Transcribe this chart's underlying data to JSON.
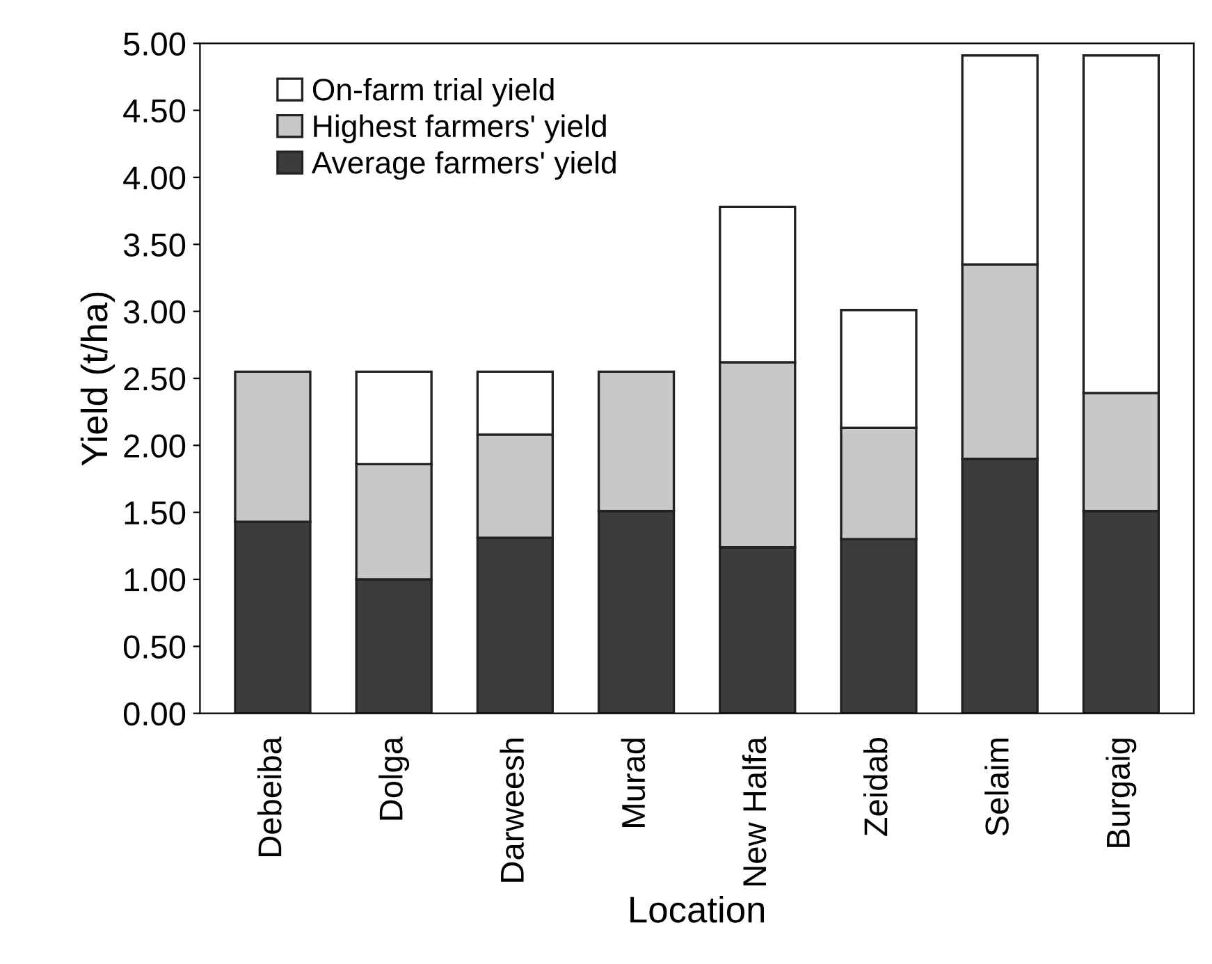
{
  "chart_data": {
    "type": "bar",
    "stacked": true,
    "xlabel": "Location",
    "ylabel": "Yield (t/ha)",
    "categories": [
      "Debeiba",
      "Dolga",
      "Darweesh",
      "Murad",
      "New Halfa",
      "Zeidab",
      "Selaim",
      "Burgaig"
    ],
    "series": [
      {
        "name": "Average farmers' yield",
        "color": "#3c3c3c",
        "values": [
          1.43,
          1.0,
          1.31,
          1.51,
          1.24,
          1.3,
          1.9,
          1.51
        ]
      },
      {
        "name": "Highest farmers' yield",
        "color": "#c8c8c8",
        "values": [
          1.12,
          0.86,
          0.77,
          1.04,
          1.38,
          0.83,
          1.45,
          0.88
        ]
      },
      {
        "name": "On-farm trial yield",
        "color": "#ffffff",
        "values": [
          null,
          0.69,
          0.47,
          null,
          1.16,
          0.88,
          1.56,
          2.52
        ]
      }
    ],
    "ylim": [
      0,
      5
    ],
    "yticks": [
      {
        "value": 0,
        "label": "0.00"
      },
      {
        "value": 0.5,
        "label": "0.50"
      },
      {
        "value": 1,
        "label": "1.00"
      },
      {
        "value": 1.5,
        "label": "1.50"
      },
      {
        "value": 2,
        "label": "2.00"
      },
      {
        "value": 2.5,
        "label": "2.50"
      },
      {
        "value": 3,
        "label": "3.00"
      },
      {
        "value": 3.5,
        "label": "3.50"
      },
      {
        "value": 4,
        "label": "4.00"
      },
      {
        "value": 4.5,
        "label": "4.50"
      },
      {
        "value": 5,
        "label": "5.00"
      }
    ],
    "grid": false,
    "legend": "top left"
  }
}
